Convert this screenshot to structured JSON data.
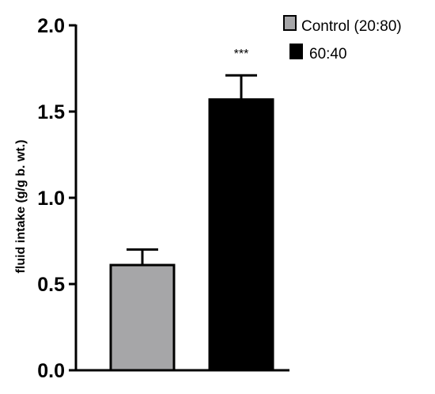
{
  "chart_data": {
    "type": "bar",
    "title": "",
    "xlabel": "",
    "ylabel": "fluid intake (g/g b. wt.)",
    "ylim": [
      0,
      2.0
    ],
    "yticks": [
      {
        "value": 0.0,
        "label": "0.0"
      },
      {
        "value": 0.5,
        "label": "0.5"
      },
      {
        "value": 1.0,
        "label": "1.0"
      },
      {
        "value": 1.5,
        "label": "1.5"
      },
      {
        "value": 2.0,
        "label": "2.0"
      }
    ],
    "grid": false,
    "legend_position": "top-right",
    "series": [
      {
        "name": "Control (20:80)",
        "value": 0.61,
        "error": 0.09,
        "color": "#a6a6a8"
      },
      {
        "name": "60:40",
        "value": 1.57,
        "error": 0.14,
        "color": "#000000"
      }
    ],
    "annotations": [
      {
        "series_index": 1,
        "text": "***"
      }
    ]
  }
}
